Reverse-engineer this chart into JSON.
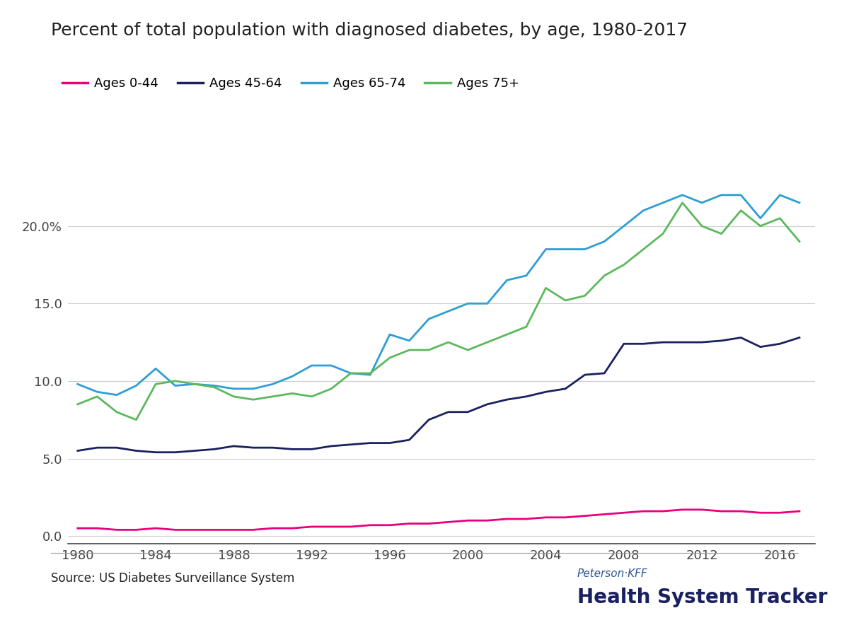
{
  "title": "Percent of total population with diagnosed diabetes, by age, 1980-2017",
  "source": "Source: US Diabetes Surveillance System",
  "branding_line1": "Peterson·KFF",
  "branding_line2": "Health System Tracker",
  "years": [
    1980,
    1981,
    1982,
    1983,
    1984,
    1985,
    1986,
    1987,
    1988,
    1989,
    1990,
    1991,
    1992,
    1993,
    1994,
    1995,
    1996,
    1997,
    1998,
    1999,
    2000,
    2001,
    2002,
    2003,
    2004,
    2005,
    2006,
    2007,
    2008,
    2009,
    2010,
    2011,
    2012,
    2013,
    2014,
    2015,
    2016,
    2017
  ],
  "ages_0_44": [
    0.5,
    0.5,
    0.4,
    0.4,
    0.5,
    0.4,
    0.4,
    0.4,
    0.4,
    0.4,
    0.5,
    0.5,
    0.6,
    0.6,
    0.6,
    0.7,
    0.7,
    0.8,
    0.8,
    0.9,
    1.0,
    1.0,
    1.1,
    1.1,
    1.2,
    1.2,
    1.3,
    1.4,
    1.5,
    1.6,
    1.6,
    1.7,
    1.7,
    1.6,
    1.6,
    1.5,
    1.5,
    1.6
  ],
  "ages_45_64": [
    5.5,
    5.7,
    5.7,
    5.5,
    5.4,
    5.4,
    5.5,
    5.6,
    5.8,
    5.7,
    5.7,
    5.6,
    5.6,
    5.8,
    5.9,
    6.0,
    6.0,
    6.2,
    7.5,
    8.0,
    8.0,
    8.5,
    8.8,
    9.0,
    9.3,
    9.5,
    10.4,
    10.5,
    12.4,
    12.4,
    12.5,
    12.5,
    12.5,
    12.6,
    12.8,
    12.2,
    12.4,
    12.8
  ],
  "ages_65_74": [
    9.8,
    9.3,
    9.1,
    9.7,
    10.8,
    9.7,
    9.8,
    9.7,
    9.5,
    9.5,
    9.8,
    10.3,
    11.0,
    11.0,
    10.5,
    10.4,
    13.0,
    12.6,
    14.0,
    14.5,
    15.0,
    15.0,
    16.5,
    16.8,
    18.5,
    18.5,
    18.5,
    19.0,
    20.0,
    21.0,
    21.5,
    22.0,
    21.5,
    22.0,
    22.0,
    20.5,
    22.0,
    21.5
  ],
  "ages_75_plus": [
    8.5,
    9.0,
    8.0,
    7.5,
    9.8,
    10.0,
    9.8,
    9.6,
    9.0,
    8.8,
    9.0,
    9.2,
    9.0,
    9.5,
    10.5,
    10.5,
    11.5,
    12.0,
    12.0,
    12.5,
    12.0,
    12.5,
    13.0,
    13.5,
    16.0,
    15.2,
    15.5,
    16.8,
    17.5,
    18.5,
    19.5,
    21.5,
    20.0,
    19.5,
    21.0,
    20.0,
    20.5,
    19.0
  ],
  "color_0_44": "#e8007d",
  "color_45_64": "#1a2060",
  "color_65_74": "#2e9ed3",
  "color_75_plus": "#5cb85c",
  "yticks": [
    0.0,
    5.0,
    10.0,
    15.0,
    20.0
  ],
  "ytick_labels": [
    "0.0",
    "5.0",
    "10.0",
    "15.0",
    "20.0%"
  ],
  "xticks": [
    1980,
    1984,
    1988,
    1992,
    1996,
    2000,
    2004,
    2008,
    2012,
    2016
  ],
  "ylim": [
    -0.5,
    24.5
  ],
  "xlim": [
    1979.5,
    2017.8
  ],
  "legend_labels": [
    "Ages 0-44",
    "Ages 45-64",
    "Ages 65-74",
    "Ages 75+"
  ],
  "background_color": "#ffffff",
  "title_color": "#222222",
  "axis_color": "#444444",
  "grid_color": "#cccccc",
  "source_color": "#222222",
  "brand_color1": "#2e5594",
  "brand_color2": "#1a2060",
  "line_width": 2.0
}
